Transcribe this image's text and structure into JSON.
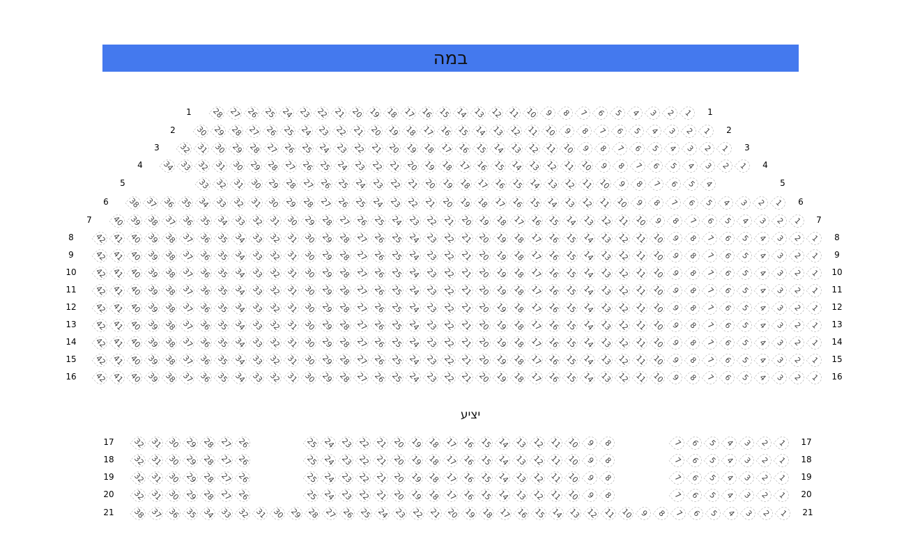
{
  "stage": {
    "label": "במה",
    "color": "#4479ee"
  },
  "balcony": {
    "label": "יציע"
  },
  "rows": [
    {
      "label": "1",
      "segments": [
        [
          28,
          1
        ]
      ]
    },
    {
      "label": "2",
      "segments": [
        [
          30,
          1
        ]
      ]
    },
    {
      "label": "3",
      "segments": [
        [
          32,
          1
        ]
      ]
    },
    {
      "label": "4",
      "segments": [
        [
          34,
          1
        ]
      ]
    },
    {
      "label": "5",
      "segments": [
        [
          33,
          4
        ]
      ]
    },
    {
      "label": "6",
      "segments": [
        [
          38,
          1
        ]
      ]
    },
    {
      "label": "7",
      "segments": [
        [
          40,
          1
        ]
      ]
    },
    {
      "label": "8",
      "segments": [
        [
          42,
          1
        ]
      ]
    },
    {
      "label": "9",
      "segments": [
        [
          42,
          1
        ]
      ]
    },
    {
      "label": "10",
      "segments": [
        [
          42,
          1
        ]
      ]
    },
    {
      "label": "11",
      "segments": [
        [
          42,
          1
        ]
      ]
    },
    {
      "label": "12",
      "segments": [
        [
          42,
          1
        ]
      ]
    },
    {
      "label": "13",
      "segments": [
        [
          42,
          1
        ]
      ]
    },
    {
      "label": "14",
      "segments": [
        [
          42,
          1
        ]
      ]
    },
    {
      "label": "15",
      "segments": [
        [
          42,
          1
        ]
      ]
    },
    {
      "label": "16",
      "segments": [
        [
          42,
          1
        ]
      ]
    },
    {
      "label": "17",
      "segments": [
        [
          32,
          26
        ],
        [
          25,
          8
        ],
        [
          7,
          1
        ]
      ]
    },
    {
      "label": "18",
      "segments": [
        [
          32,
          26
        ],
        [
          25,
          8
        ],
        [
          7,
          1
        ]
      ]
    },
    {
      "label": "19",
      "segments": [
        [
          32,
          26
        ],
        [
          25,
          8
        ],
        [
          7,
          1
        ]
      ]
    },
    {
      "label": "20",
      "segments": [
        [
          32,
          26
        ],
        [
          25,
          8
        ],
        [
          7,
          1
        ]
      ]
    },
    {
      "label": "21",
      "segments": [
        [
          38,
          1
        ]
      ]
    }
  ]
}
